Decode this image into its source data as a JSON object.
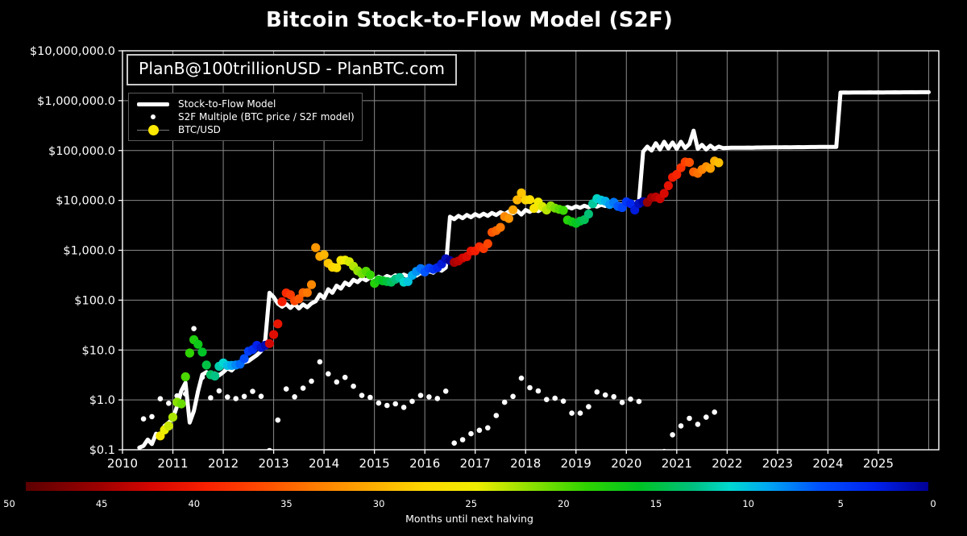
{
  "title": "Bitcoin Stock-to-Flow Model (S2F)",
  "annotation": "PlanB@100trillionUSD - PlanBTC.com",
  "legend": {
    "items": [
      {
        "label": "Stock-to-Flow Model",
        "marker": "thick-white-line"
      },
      {
        "label": "S2F Multiple (BTC price / S2F model)",
        "marker": "small-white-dot"
      },
      {
        "label": "BTC/USD",
        "marker": "yellow-dot"
      }
    ]
  },
  "colors": {
    "background": "#000000",
    "grid": "#8a8a8a",
    "spine": "#ffffff",
    "model_line": "#ffffff",
    "multiple_dot": "#ffffff",
    "text": "#ffffff",
    "legend_yellow": "#ffe800"
  },
  "axes": {
    "y_tick_labels": [
      "$0.1",
      "$1.0",
      "$10.0",
      "$100.0",
      "$1,000.0",
      "$10,000.0",
      "$100,000.0",
      "$1,000,000.0",
      "$10,000,000.0"
    ],
    "y_tick_values": [
      0.1,
      1,
      10,
      100,
      1000,
      10000,
      100000,
      1000000,
      10000000
    ],
    "x_tick_labels": [
      "2010",
      "2011",
      "2012",
      "2013",
      "2014",
      "2015",
      "2016",
      "2017",
      "2018",
      "2019",
      "2020",
      "2021",
      "2022",
      "2023",
      "2024",
      "2025"
    ],
    "xlim": [
      2010,
      2026.2
    ],
    "ylim": [
      0.1,
      10000000
    ],
    "grid": true,
    "y_scale": "log"
  },
  "colorbar": {
    "label": "Months until next halving",
    "ticks": [
      50,
      45,
      40,
      35,
      30,
      25,
      20,
      15,
      10,
      5,
      0
    ],
    "range": [
      50,
      0
    ],
    "stops": [
      [
        0,
        "#000095"
      ],
      [
        3,
        "#0022ee"
      ],
      [
        6,
        "#0050ff"
      ],
      [
        9,
        "#00aaf0"
      ],
      [
        11,
        "#00d8d0"
      ],
      [
        13,
        "#00c080"
      ],
      [
        16,
        "#00c424"
      ],
      [
        19,
        "#30d400"
      ],
      [
        22,
        "#8ce000"
      ],
      [
        25,
        "#f0ee00"
      ],
      [
        28,
        "#ffd800"
      ],
      [
        31,
        "#ffaa00"
      ],
      [
        34,
        "#ff7c00"
      ],
      [
        37,
        "#ff4a00"
      ],
      [
        40,
        "#f82000"
      ],
      [
        43,
        "#d60600"
      ],
      [
        46,
        "#9c0000"
      ],
      [
        50,
        "#5c0000"
      ]
    ]
  },
  "chart_data": {
    "type": "line+scatter",
    "title": "Bitcoin Stock-to-Flow Model (S2F)",
    "halving_dates_decimal_years": [
      2012.908,
      2016.518,
      2020.362,
      2024.302,
      2028.25
    ],
    "dot_color_rule": "BTC/USD dots colored by months until next halving via colorbar stops",
    "s2f_multiple_rule": "white dots = BTC price / S2F model value, plotted every second month",
    "model": {
      "name": "Stock-to-Flow Model",
      "start_year": 2010.3333,
      "step_years": 0.083333,
      "values": [
        0.11,
        0.12,
        0.16,
        0.13,
        0.21,
        0.18,
        0.3,
        0.35,
        0.42,
        0.75,
        1.5,
        2.2,
        0.35,
        0.6,
        1.5,
        3.2,
        3.6,
        2.9,
        3.4,
        3.1,
        3.6,
        4.3,
        3.9,
        4.7,
        5.0,
        5.7,
        6.0,
        6.9,
        7.9,
        9.5,
        16,
        140,
        115,
        85,
        74,
        84,
        70,
        84,
        68,
        82,
        72,
        86,
        95,
        130,
        110,
        165,
        140,
        195,
        170,
        225,
        200,
        255,
        230,
        275,
        250,
        285,
        260,
        295,
        270,
        305,
        280,
        315,
        290,
        325,
        300,
        335,
        310,
        350,
        330,
        380,
        355,
        420,
        390,
        450,
        4700,
        4200,
        4900,
        4400,
        5100,
        4600,
        5300,
        4800,
        5400,
        4900,
        5600,
        5100,
        5800,
        5300,
        6000,
        5500,
        6200,
        5200,
        6400,
        5900,
        6600,
        6100,
        6800,
        6300,
        7000,
        6500,
        7200,
        6700,
        7400,
        6900,
        7600,
        7100,
        7800,
        7300,
        8000,
        7500,
        8200,
        7700,
        8400,
        7900,
        8600,
        8100,
        8800,
        8300,
        9000,
        9300,
        95000,
        120000,
        100000,
        140000,
        105000,
        150000,
        110000,
        145000,
        108000,
        150000,
        112000,
        135000,
        250000,
        108000,
        130000,
        105000,
        125000,
        108000,
        120000,
        112000,
        113000,
        113500,
        114000,
        113800,
        114200,
        114500,
        114300,
        114800,
        115000,
        115300,
        115500,
        115800,
        116000,
        116200,
        116500,
        116300,
        116800,
        117000,
        116800,
        117200,
        117400,
        117600,
        117800,
        118000,
        118200,
        118400,
        118600,
        1450000,
        1455000,
        1452000,
        1458000,
        1455000,
        1462000,
        1458000,
        1465000,
        1462000,
        1465000,
        1462000,
        1468000,
        1465000,
        1470000,
        1468000,
        1472000,
        1470000,
        1475000,
        1472000,
        1476000,
        1474000,
        1475000
      ]
    },
    "btc": {
      "name": "BTC/USD",
      "start_year": 2010.4167,
      "step_years": 0.083333,
      "values": [
        0.05,
        0.06,
        0.06,
        0.06,
        0.19,
        0.25,
        0.3,
        0.45,
        0.9,
        0.83,
        2.9,
        8.7,
        16.1,
        13.0,
        9.1,
        5.0,
        3.2,
        3.0,
        4.7,
        5.5,
        4.9,
        4.9,
        5.0,
        5.2,
        6.7,
        9.4,
        10.2,
        12.4,
        11.2,
        12.5,
        13.5,
        20.4,
        33.4,
        93,
        139,
        128,
        97,
        106,
        141,
        141,
        204,
        1130,
        755,
        815,
        550,
        458,
        446,
        627,
        635,
        589,
        478,
        387,
        338,
        378,
        320,
        217,
        254,
        244,
        236,
        230,
        263,
        284,
        230,
        236,
        314,
        377,
        430,
        368,
        437,
        416,
        448,
        531,
        673,
        624,
        573,
        609,
        700,
        745,
        964,
        970,
        1180,
        1080,
        1350,
        2290,
        2480,
        2880,
        4740,
        4340,
        6470,
        10230,
        14160,
        10220,
        10360,
        6930,
        9240,
        7490,
        6400,
        7730,
        7010,
        6630,
        6320,
        4040,
        3740,
        3460,
        3850,
        4100,
        5320,
        8560,
        10820,
        10090,
        9630,
        8290,
        9150,
        7560,
        7190,
        9350,
        8600,
        6440,
        8630,
        9450,
        9140,
        11350,
        11650,
        10780,
        13800,
        19700,
        29000,
        33100,
        45200,
        58800,
        57700,
        37300,
        35000,
        41600,
        47200,
        43800,
        61300,
        57000
      ]
    }
  }
}
